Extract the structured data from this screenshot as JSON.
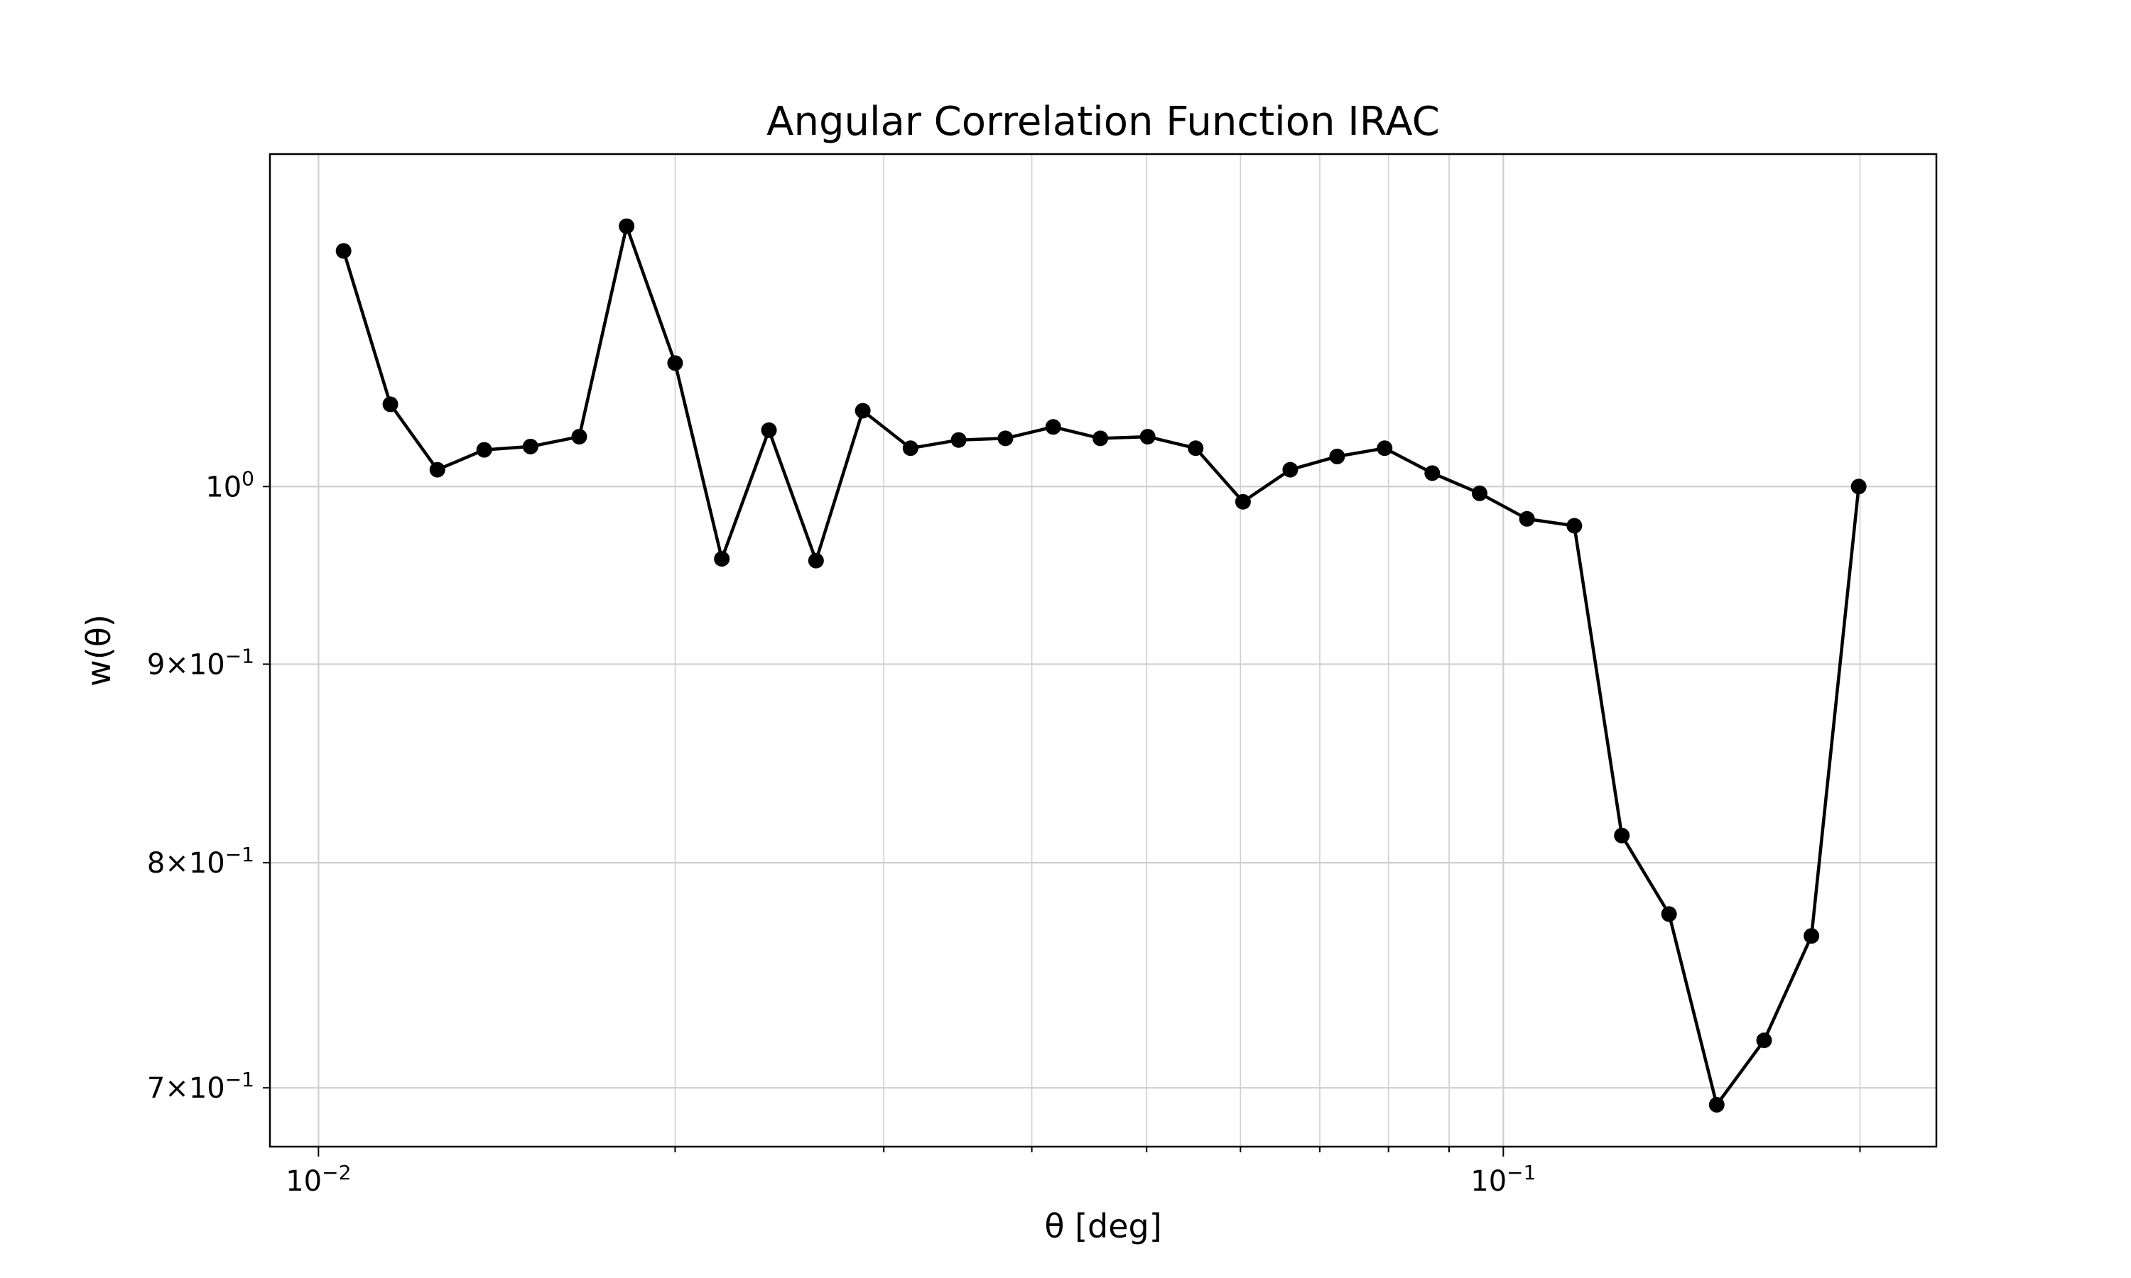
{
  "chart_data": {
    "type": "line",
    "title": "Angular Correlation Function IRAC",
    "xlabel": "θ [deg]",
    "ylabel": "w(θ)",
    "xscale": "log",
    "yscale": "log",
    "xlim": [
      0.0091,
      0.232
    ],
    "ylim": [
      0.676,
      1.218
    ],
    "grid": true,
    "legend": false,
    "x_ticks": [
      {
        "value": 0.01,
        "base": "10",
        "exp": "−2"
      },
      {
        "value": 0.1,
        "base": "10",
        "exp": "−1"
      }
    ],
    "y_ticks": [
      {
        "value": 1.0,
        "mant": "",
        "base": "10",
        "exp": "0"
      },
      {
        "value": 0.9,
        "mant": "9×",
        "base": "10",
        "exp": "−1"
      },
      {
        "value": 0.8,
        "mant": "8×",
        "base": "10",
        "exp": "−1"
      },
      {
        "value": 0.7,
        "mant": "7×",
        "base": "10",
        "exp": "−1"
      }
    ],
    "series": [
      {
        "color": "#000000",
        "marker": "circle",
        "x": [
          0.0105,
          0.0115,
          0.0126,
          0.0138,
          0.0151,
          0.0166,
          0.0182,
          0.02,
          0.0219,
          0.024,
          0.0263,
          0.0288,
          0.0316,
          0.0347,
          0.038,
          0.0417,
          0.0457,
          0.0501,
          0.055,
          0.0603,
          0.0661,
          0.0724,
          0.0794,
          0.0871,
          0.0955,
          0.1047,
          0.1148,
          0.1259,
          0.138,
          0.1514,
          0.166,
          0.182,
          0.1995
        ],
        "y": [
          1.15,
          1.05,
          1.01,
          1.022,
          1.024,
          1.03,
          1.167,
          1.076,
          0.958,
          1.034,
          0.957,
          1.046,
          1.023,
          1.028,
          1.029,
          1.036,
          1.029,
          1.03,
          1.023,
          0.991,
          1.01,
          1.018,
          1.023,
          1.008,
          0.996,
          0.981,
          0.977,
          0.813,
          0.776,
          0.693,
          0.72,
          0.766,
          1.0
        ]
      }
    ]
  }
}
